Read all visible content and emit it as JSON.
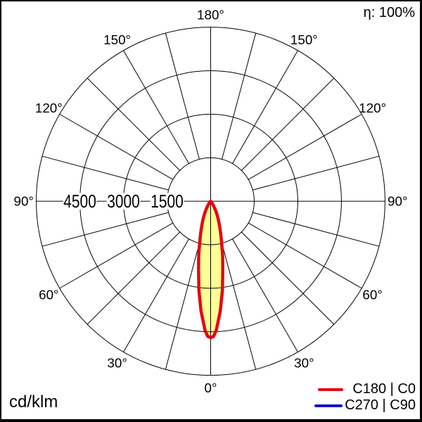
{
  "page": {
    "background": "#ffffff",
    "border_color": "#000000"
  },
  "header": {
    "efficiency": "η: 100%"
  },
  "footer": {
    "units": "cd/klm"
  },
  "legend": {
    "entries": [
      {
        "label": "C180 | C0",
        "color": "#e60613"
      },
      {
        "label": "C270 | C90",
        "color": "#1414c8"
      }
    ]
  },
  "chart_data": {
    "type": "line",
    "coordinate_system": "polar photometric; 0° at bottom (nadir), 180° at top, angles mirrored left/right",
    "units": "cd/klm",
    "efficiency_label": "η: 100%",
    "efficiency_percent": 100,
    "radial_rings_cd_per_klm": [
      1500,
      3000,
      4500,
      6000
    ],
    "radial_axis_labels": [
      "4500",
      "3000",
      "1500"
    ],
    "angle_major_labels_deg": [
      0,
      30,
      60,
      90,
      120,
      150,
      180
    ],
    "angle_label_texts": [
      "0°",
      "30°",
      "60°",
      "90°",
      "120°",
      "150°",
      "180°"
    ],
    "angle_minor_step_deg": 15,
    "grid": true,
    "legend_position": "bottom-right",
    "series": [
      {
        "name": "C270 | C90",
        "color": "#1414c8",
        "note": "coincides with C180 | C0 curve (hidden beneath it)",
        "gamma_deg": [
          0,
          1.25,
          2.5,
          5,
          7.5,
          10,
          12.5,
          15,
          17.5,
          20,
          22.5,
          25,
          27.5,
          30,
          32.5,
          35,
          40,
          45,
          50,
          55,
          60,
          70,
          80,
          90
        ],
        "cd_per_klm": [
          4700,
          4660,
          4450,
          3800,
          3100,
          2400,
          1900,
          1450,
          1140,
          890,
          700,
          540,
          400,
          280,
          195,
          130,
          60,
          30,
          20,
          15,
          10,
          5,
          2,
          0
        ]
      },
      {
        "name": "C180 | C0",
        "color": "#e60613",
        "fill": "#ffff96",
        "gamma_deg": [
          0,
          1.25,
          2.5,
          5,
          7.5,
          10,
          12.5,
          15,
          17.5,
          20,
          22.5,
          25,
          27.5,
          30,
          32.5,
          35,
          40,
          45,
          50,
          55,
          60,
          70,
          80,
          90
        ],
        "cd_per_klm": [
          4700,
          4660,
          4450,
          3800,
          3100,
          2400,
          1900,
          1450,
          1140,
          890,
          700,
          540,
          400,
          280,
          195,
          130,
          60,
          30,
          20,
          15,
          10,
          5,
          2,
          0
        ]
      }
    ]
  }
}
